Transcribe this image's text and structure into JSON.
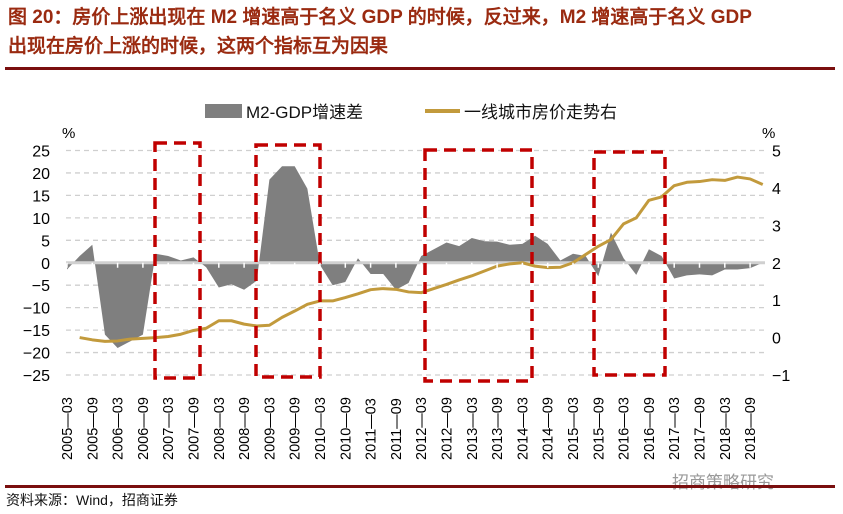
{
  "title": {
    "line1": "图 20：房价上涨出现在 M2 增速高于名义 GDP 的时候，反过来，M2 增速高于名义 GDP",
    "line2": "出现在房价上涨的时候，这两个指标互为因果"
  },
  "footer": {
    "source": "资料来源：Wind，招商证券",
    "watermark": "招商策略研究"
  },
  "colors": {
    "title": "#9a2a10",
    "area": "#7f7f7f",
    "line": "#c29a3c",
    "annotation": "#c00000",
    "rule": "#7a0f0f"
  },
  "chart_data": {
    "type": "area+line",
    "legend_position": "top",
    "grid": "horizontal dashed",
    "left_axis": {
      "unit": "%",
      "ylim": [
        -25,
        25
      ],
      "ticks": [
        "25",
        "20",
        "15",
        "10",
        "5",
        "0",
        "-5",
        "-10",
        "-15",
        "-20",
        "-25"
      ]
    },
    "right_axis": {
      "unit": "%",
      "ylim": [
        -1,
        5
      ],
      "ticks": [
        "5",
        "4",
        "3",
        "2",
        "1",
        "0",
        "-1"
      ]
    },
    "x_tick_labels": [
      "2005-03",
      "2005-09",
      "2006-03",
      "2006-09",
      "2007-03",
      "2007-09",
      "2008-03",
      "2008-09",
      "2009-03",
      "2009-09",
      "2010-03",
      "2010-09",
      "2011-03",
      "2011-09",
      "2012-03",
      "2012-09",
      "2013-03",
      "2013-09",
      "2014-03",
      "2014-09",
      "2015-03",
      "2015-09",
      "2016-03",
      "2016-09",
      "2017-03",
      "2017-09",
      "2018-03",
      "2018-09"
    ],
    "x_start": "2005-03",
    "x_end": "2018-12",
    "frequency": "quarterly",
    "series": [
      {
        "name": "M2-GDP增速差",
        "type": "area",
        "axis": "left",
        "values": [
          -1.5,
          1.5,
          4,
          -16,
          -19,
          -17.5,
          -16,
          2,
          1.5,
          0.5,
          1.2,
          -1,
          -5.5,
          -4.8,
          -6,
          -4,
          18.5,
          21.5,
          21.5,
          16.5,
          -0.5,
          -5,
          -4.3,
          1,
          -2.5,
          -2.5,
          -6,
          -4.5,
          1.5,
          3,
          4.5,
          3.7,
          5.5,
          4.8,
          4.7,
          4,
          4.2,
          6,
          4.2,
          0.5,
          2,
          1.5,
          -3,
          6.7,
          1,
          -2.7,
          3,
          1.5,
          -3.5,
          -2.8,
          -2.6,
          -2.8,
          -1.5,
          -1.5,
          -1.2,
          0
        ]
      },
      {
        "name": "一线城市房价走势右",
        "type": "line",
        "axis": "right",
        "values": [
          null,
          0.0,
          -0.06,
          -0.1,
          -0.09,
          -0.04,
          -0.02,
          0.0,
          0.03,
          0.09,
          0.19,
          0.25,
          0.45,
          0.45,
          0.36,
          0.31,
          0.33,
          0.54,
          0.71,
          0.89,
          0.98,
          0.98,
          1.07,
          1.17,
          1.28,
          1.31,
          1.29,
          1.22,
          1.2,
          1.31,
          1.42,
          1.54,
          1.65,
          1.78,
          1.91,
          1.97,
          2.0,
          1.91,
          1.87,
          1.88,
          2.0,
          2.22,
          2.44,
          2.62,
          3.04,
          3.2,
          3.67,
          3.76,
          4.06,
          4.15,
          4.17,
          4.22,
          4.2,
          4.29,
          4.24,
          4.09
        ]
      }
    ],
    "annotations": [
      {
        "type": "dashed-box",
        "from": "2007-Q1",
        "to": "2007-Q4"
      },
      {
        "type": "dashed-box",
        "from": "2009-Q1",
        "to": "2010-Q1"
      },
      {
        "type": "dashed-box",
        "from": "2012-Q1",
        "to": "2014-Q2"
      },
      {
        "type": "dashed-box",
        "from": "2015-Q3",
        "to": "2016-Q4"
      }
    ]
  }
}
